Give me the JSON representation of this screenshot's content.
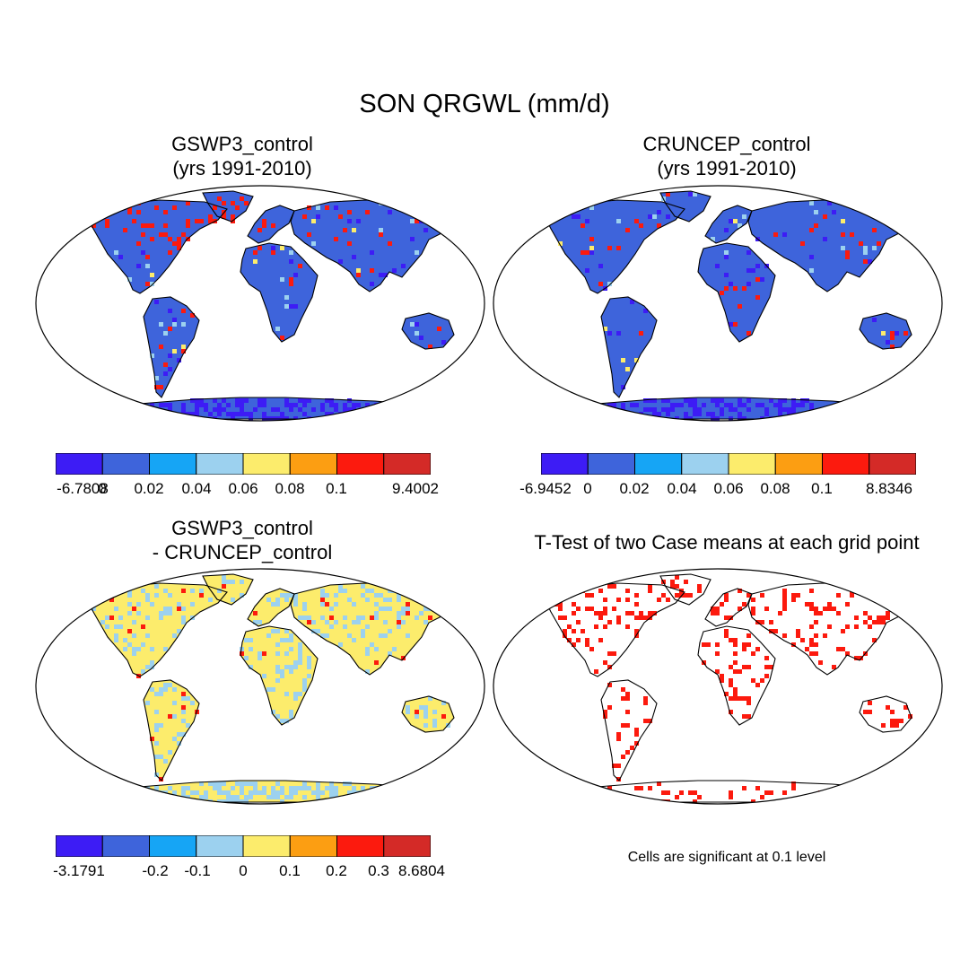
{
  "main_title": "SON QRGWL (mm/d)",
  "palette": [
    "#3d1cf5",
    "#3e64db",
    "#16a5f5",
    "#9cd1ef",
    "#fcec6c",
    "#fc9e12",
    "#fc1a0e",
    "#d42a27"
  ],
  "land_color_primary": "#3e64db",
  "land_color_diff": "#fcec6c",
  "signif_color": "#fc1a0e",
  "panels": [
    {
      "title": "GSWP3_control",
      "subtitle": "(yrs 1991-2010)",
      "colorbar_labels": [
        "-6.7808",
        "0",
        "0.02",
        "0.04",
        "0.06",
        "0.08",
        "0.1",
        "9.4002"
      ]
    },
    {
      "title": "CRUNCEP_control",
      "subtitle": "(yrs 1991-2010)",
      "colorbar_labels": [
        "-6.9452",
        "0",
        "0.02",
        "0.04",
        "0.06",
        "0.08",
        "0.1",
        "8.8346"
      ]
    },
    {
      "title": "GSWP3_control",
      "subtitle": "- CRUNCEP_control",
      "colorbar_labels": [
        "-3.1791",
        "-0.2",
        "-0.1",
        "0",
        "0.1",
        "0.2",
        "0.3",
        "8.6804"
      ]
    },
    {
      "title": "T-Test of two Case means at each grid point",
      "footnote": "Cells are significant at 0.1 level"
    }
  ]
}
